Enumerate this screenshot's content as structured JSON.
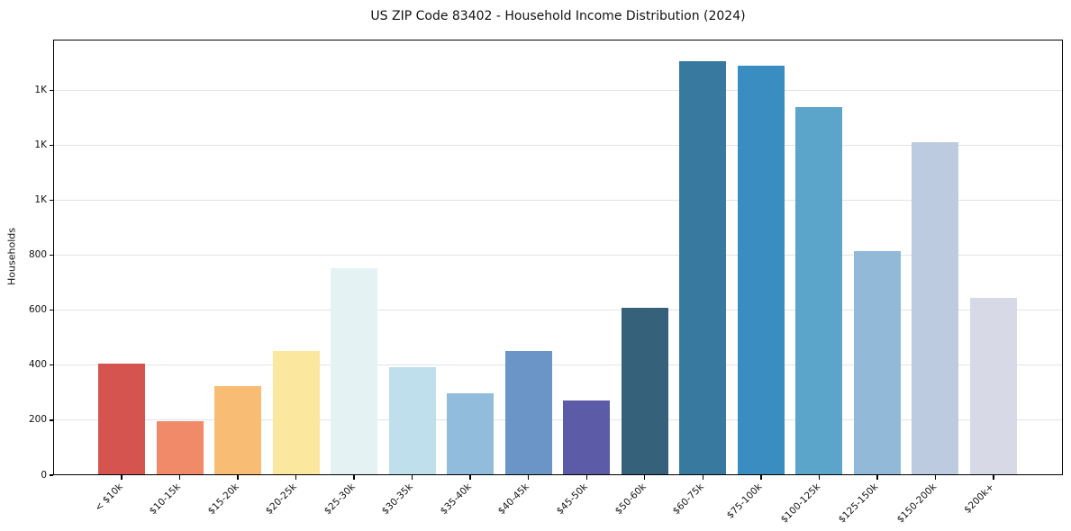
{
  "chart_data": {
    "type": "bar",
    "title": "US ZIP Code 83402 - Household Income Distribution (2024)",
    "xlabel": "",
    "ylabel": "Households",
    "categories": [
      "< $10k",
      "$10-15k",
      "$15-20k",
      "$20-25k",
      "$25-30k",
      "$30-35k",
      "$35-40k",
      "$40-45k",
      "$45-50k",
      "$50-60k",
      "$60-75k",
      "$75-100k",
      "$100-125k",
      "$125-150k",
      "$150-200k",
      "$200k+"
    ],
    "values": [
      405,
      198,
      324,
      451,
      754,
      393,
      298,
      452,
      272,
      608,
      1507,
      1489,
      1340,
      814,
      1211,
      646
    ],
    "bar_colors": [
      "#d6544f",
      "#f08a68",
      "#f9bc74",
      "#fce79f",
      "#e5f2f4",
      "#bfdfec",
      "#91bcdb",
      "#6b94c7",
      "#5b5ba7",
      "#35617a",
      "#387a9f",
      "#398dc0",
      "#5ba4ca",
      "#93b9d8",
      "#bdcbe0",
      "#d7d9e6"
    ],
    "ylim": [
      0,
      1585
    ],
    "yticks": {
      "values": [
        0,
        200,
        400,
        600,
        800,
        1000,
        1200,
        1400
      ],
      "labels": [
        "0",
        "200",
        "400",
        "600",
        "800",
        "1K",
        "1K",
        "1K"
      ]
    },
    "grid": "horizontal",
    "legend": "none"
  },
  "style": {
    "background": "#ffffff",
    "grid_color": "#e3e3e8",
    "spine_color": "#000000",
    "text_color": "#111111"
  }
}
